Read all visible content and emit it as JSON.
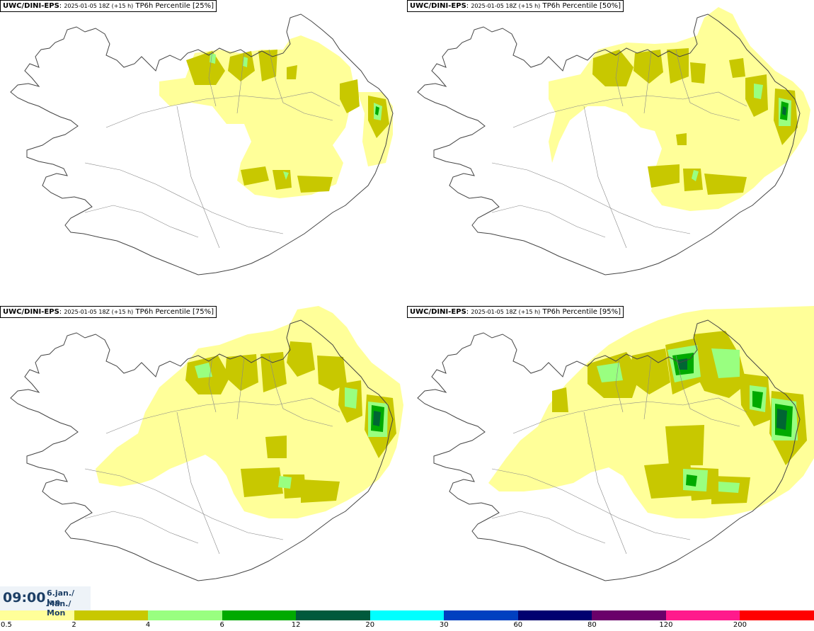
{
  "panels": [
    {
      "model": "UWC/DINI-EPS",
      "sep": ": ",
      "run": "2025-01-05 18Z (+15 h)",
      "field": "TP6h Percentile [25%]",
      "level": 0
    },
    {
      "model": "UWC/DINI-EPS",
      "sep": ": ",
      "run": "2025-01-05 18Z (+15 h)",
      "field": "TP6h Percentile [50%]",
      "level": 1
    },
    {
      "model": "UWC/DINI-EPS",
      "sep": ": ",
      "run": "2025-01-05 18Z (+15 h)",
      "field": "TP6h Percentile [75%]",
      "level": 2
    },
    {
      "model": "UWC/DINI-EPS",
      "sep": ": ",
      "run": "2025-01-05 18Z (+15 h)",
      "field": "TP6h Percentile [95%]",
      "level": 3
    }
  ],
  "valid_time": {
    "time": "09:00",
    "date_line": "6.jan./ Jan",
    "day_line": "Mán./ Mon"
  },
  "legend": {
    "labels": [
      "0.5",
      "2",
      "4",
      "6",
      "12",
      "20",
      "30",
      "60",
      "80",
      "120",
      "200"
    ],
    "colors": [
      "#ffff99",
      "#c8c800",
      "#99ff80",
      "#00aa00",
      "#005a3c",
      "#00ffff",
      "#0040c0",
      "#000070",
      "#6a006a",
      "#ff1a8c",
      "#ff0000"
    ]
  },
  "colors": {
    "light": "#ffff99",
    "mid": "#c8c800",
    "green": "#99ff80",
    "dgreen": "#00aa00",
    "ddgreen": "#006633",
    "coast": "#444444"
  }
}
